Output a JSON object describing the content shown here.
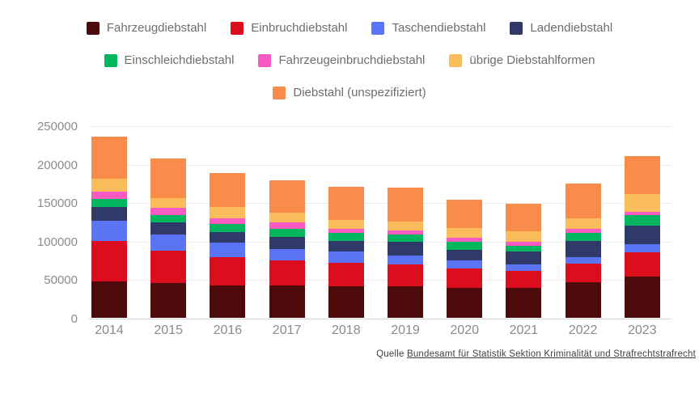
{
  "chart_data": {
    "type": "bar",
    "subtype": "stacked",
    "title": "",
    "xlabel": "",
    "ylabel": "",
    "ylim": [
      0,
      250000
    ],
    "yticks": [
      0,
      50000,
      100000,
      150000,
      200000,
      250000
    ],
    "grid": "horizontal",
    "legend_position": "top",
    "categories": [
      "2014",
      "2015",
      "2016",
      "2017",
      "2018",
      "2019",
      "2020",
      "2021",
      "2022",
      "2023"
    ],
    "series": [
      {
        "name": "Fahrzeugdiebstahl",
        "color": "#4e0b0b",
        "values": [
          47000,
          45000,
          42500,
          42500,
          41000,
          41500,
          39000,
          39000,
          46000,
          54000
        ]
      },
      {
        "name": "Einbruchdiebstahl",
        "color": "#dc0e1e",
        "values": [
          53000,
          42000,
          36000,
          32000,
          30000,
          27500,
          25000,
          21500,
          24000,
          31000
        ]
      },
      {
        "name": "Taschendiebstahl",
        "color": "#5b74f5",
        "values": [
          26500,
          21500,
          19000,
          15000,
          15000,
          12000,
          10500,
          9000,
          8500,
          10500
        ]
      },
      {
        "name": "Ladendiebstahl",
        "color": "#303a69",
        "values": [
          17000,
          15000,
          14000,
          16000,
          14000,
          17500,
          14000,
          16500,
          21000,
          24500
        ]
      },
      {
        "name": "Einschleichdiebstahl",
        "color": "#02b55f",
        "values": [
          10500,
          10000,
          10500,
          10000,
          10500,
          10000,
          10500,
          8000,
          10500,
          13000
        ]
      },
      {
        "name": "Fahrzeugeinbruchdiebstahl",
        "color": "#f75bc1",
        "values": [
          9500,
          9000,
          7500,
          8500,
          5500,
          5500,
          5500,
          5000,
          5500,
          5000
        ]
      },
      {
        "name": "übrige Diebstahlformen",
        "color": "#fbbd5c",
        "values": [
          17500,
          13000,
          14000,
          12500,
          11000,
          11500,
          12000,
          13000,
          13500,
          22500
        ]
      },
      {
        "name": "Diebstahl (unspezifiziert)",
        "color": "#fa8c4b",
        "values": [
          54000,
          51000,
          45000,
          42000,
          43500,
          43500,
          37000,
          36500,
          45500,
          49500
        ]
      }
    ],
    "legend_rows": [
      [
        0,
        1,
        2,
        3
      ],
      [
        4,
        5,
        6
      ],
      [
        7
      ]
    ],
    "totals": [
      235000,
      206500,
      188500,
      178500,
      170500,
      169000,
      153500,
      148500,
      174500,
      210000
    ]
  },
  "footer": {
    "prefix": "Quelle",
    "link_text": "Bundesamt für Statistik Sektion Kriminalität und Strafrechtstrafrecht"
  }
}
